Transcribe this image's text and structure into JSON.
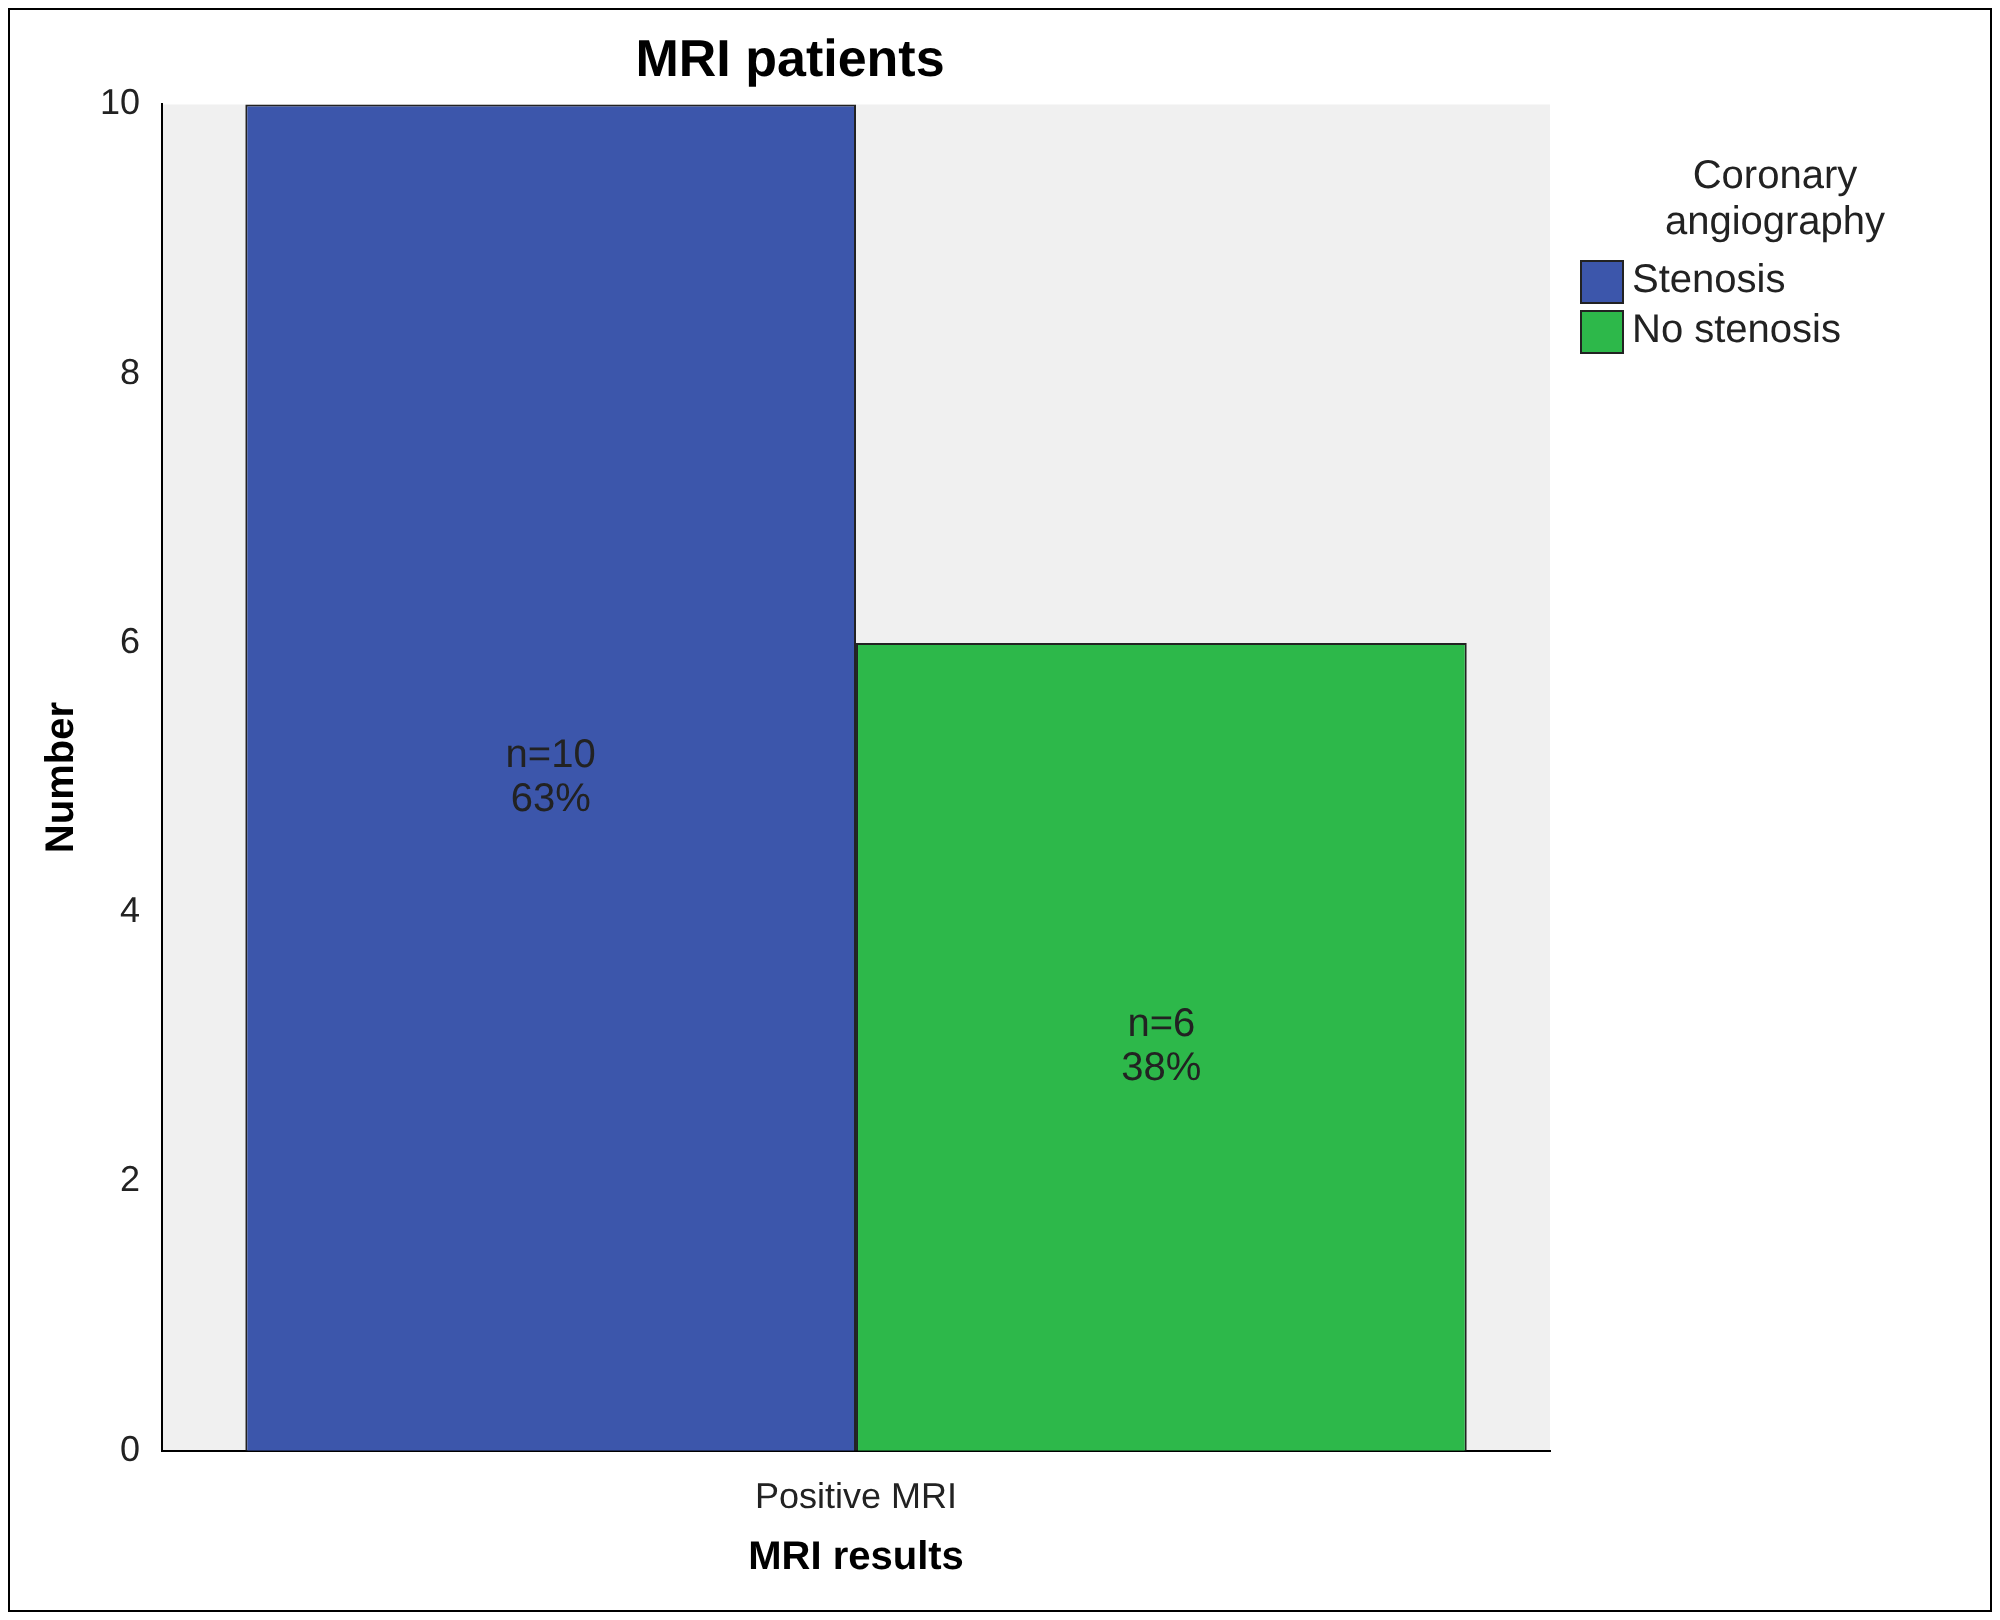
{
  "chart_data": {
    "type": "bar",
    "title": "MRI patients",
    "xlabel": "MRI results",
    "ylabel": "Number",
    "legend_title": "Coronary angiography",
    "categories": [
      "Positive MRI"
    ],
    "series": [
      {
        "name": "Stenosis",
        "color": "#3c56ab",
        "values": [
          10
        ],
        "value_labels": [
          "n=10\n63%"
        ]
      },
      {
        "name": "No stenosis",
        "color": "#2db84a",
        "values": [
          6
        ],
        "value_labels": [
          "n=6\n38%"
        ]
      }
    ],
    "ylim": [
      0,
      10
    ],
    "yticks": [
      0,
      2,
      4,
      6,
      8,
      10
    ],
    "grid": false,
    "legend": "right"
  }
}
